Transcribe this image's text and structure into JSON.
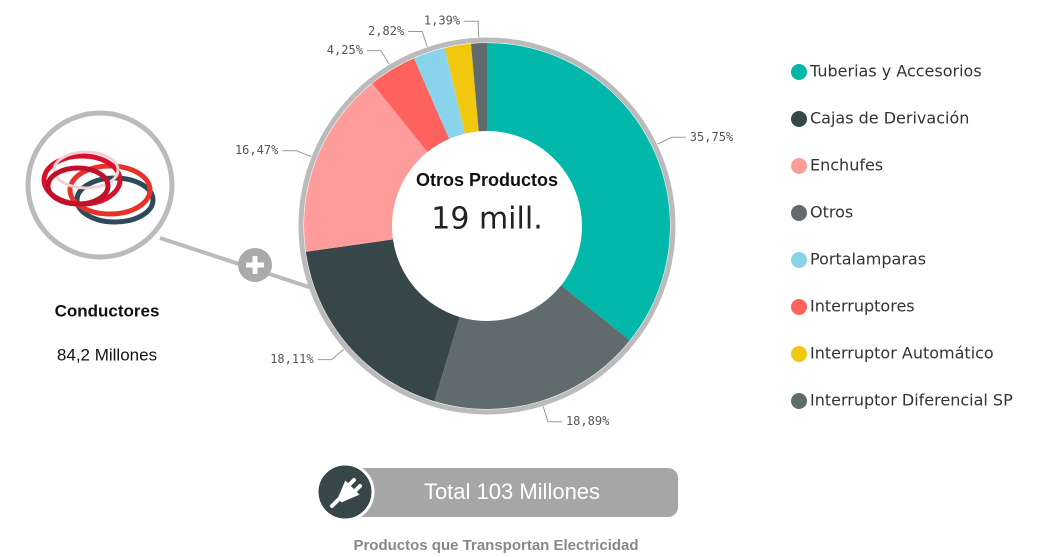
{
  "chart_data": {
    "type": "pie",
    "donut": true,
    "center_title": "Otros Productos",
    "center_value": "19 mill.",
    "values": [
      35.75,
      18.89,
      18.11,
      16.47,
      4.25,
      2.82,
      2.32,
      1.39
    ],
    "value_labels": [
      "35,75%",
      "18,89%",
      "18,11%",
      "16,47%",
      "4,25%",
      "2,82%",
      null,
      "1,39%"
    ],
    "colors": [
      "#01b8aa",
      "#5f6b6d",
      "#374649",
      "#fd9c9a",
      "#fd625e",
      "#8ad4eb",
      "#f2c80f",
      "#5f6b6d"
    ],
    "legend": [
      {
        "name": "Tuberias y Accesorios",
        "color": "#01b8aa"
      },
      {
        "name": "Cajas de Derivación",
        "color": "#374649"
      },
      {
        "name": "Enchufes",
        "color": "#fd9c9a"
      },
      {
        "name": "Otros",
        "color": "#5f6b6d"
      },
      {
        "name": "Portalamparas",
        "color": "#8ad4eb"
      },
      {
        "name": "Interruptores",
        "color": "#fd625e"
      },
      {
        "name": "Interruptor Automático",
        "color": "#f2c80f"
      },
      {
        "name": "Interruptor Diferencial SP",
        "color": "#5f6b6d"
      }
    ]
  },
  "side": {
    "title": "Conductores",
    "value": "84,2 Millones"
  },
  "total": {
    "label": "Total 103 Millones",
    "subtitle": "Productos que Transportan Electricidad"
  }
}
